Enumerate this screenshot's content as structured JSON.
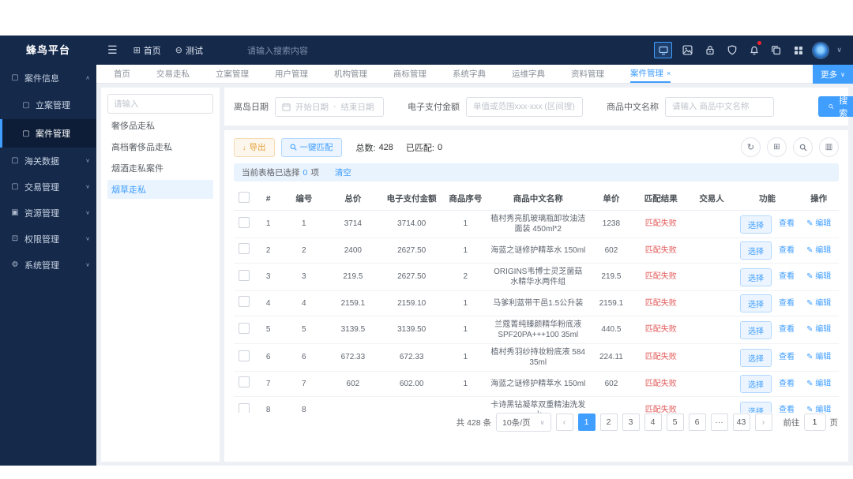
{
  "app": {
    "title": "蜂鸟平台"
  },
  "colors": {
    "accent": "#409EFF",
    "navy": "#15294B",
    "danger": "#E25B5B",
    "warning": "#E6A23C"
  },
  "topbar": {
    "nav": [
      {
        "label": "首页",
        "icon": "home-grid-icon"
      },
      {
        "label": "测试",
        "icon": "test-circle-icon"
      }
    ],
    "search_placeholder": "请输入搜索内容",
    "icon_names": [
      "screen-icon",
      "image-icon",
      "lock-icon",
      "shield-icon",
      "bell-icon",
      "copy-icon",
      "apps-grid-icon",
      "avatar",
      "chevron-down-icon"
    ]
  },
  "sidebar": {
    "items": [
      {
        "label": "案件信息",
        "icon": "monitor-icon",
        "expanded": true,
        "children": [
          {
            "label": "立案管理",
            "icon": "monitor-icon"
          },
          {
            "label": "案件管理",
            "icon": "monitor-icon",
            "active": true
          }
        ]
      },
      {
        "label": "海关数据",
        "icon": "monitor-icon"
      },
      {
        "label": "交易管理",
        "icon": "monitor-icon"
      },
      {
        "label": "资源管理",
        "icon": "folder-icon"
      },
      {
        "label": "权限管理",
        "icon": "lock-icon"
      },
      {
        "label": "系统管理",
        "icon": "gear-icon"
      }
    ]
  },
  "tabs": {
    "items": [
      "首页",
      "交易走私",
      "立案管理",
      "用户管理",
      "机构管理",
      "商标管理",
      "系统字典",
      "运维字典",
      "资料管理",
      "案件管理"
    ],
    "active": "案件管理",
    "more_label": "更多"
  },
  "left_panel": {
    "search_placeholder": "请输入",
    "items": [
      "奢侈品走私",
      "高档奢侈品走私",
      "烟酒走私案件",
      "烟草走私"
    ],
    "active": "烟草走私"
  },
  "filters": {
    "date_label": "离岛日期",
    "date_start_placeholder": "开始日期",
    "date_separator": "-",
    "date_end_placeholder": "结束日期",
    "amount_label": "电子支付金额",
    "amount_placeholder": "单值或范围xxx-xxx (区间搜)",
    "name_label": "商品中文名称",
    "name_placeholder": "请输入 商品中文名称",
    "search_button": "搜索"
  },
  "toolbar": {
    "export_button": "导出",
    "match_button": "一键匹配",
    "total_label": "总数:",
    "total_value": "428",
    "matched_label": "已匹配:",
    "matched_value": "0"
  },
  "selection_bar": {
    "prefix": "当前表格已选择",
    "count": "0",
    "suffix": "项",
    "clear_link": "清空"
  },
  "table": {
    "columns": [
      "#",
      "编号",
      "总价",
      "电子支付金额",
      "商品序号",
      "商品中文名称",
      "单价",
      "匹配结果",
      "交易人",
      "功能",
      "操作"
    ],
    "row_actions": {
      "select": "选择",
      "view": "查看",
      "edit": "编辑"
    },
    "rows": [
      {
        "num": "1",
        "code": "1",
        "total": "3714",
        "payment": "3714.00",
        "seq": "1",
        "name": "植村秀亮肌玻璃瓶卸妆油洁面装 450ml*2",
        "unit": "1238",
        "result": "匹配失败",
        "trader": ""
      },
      {
        "num": "2",
        "code": "2",
        "total": "2400",
        "payment": "2627.50",
        "seq": "1",
        "name": "海蓝之谜修护精萃水 150ml",
        "unit": "602",
        "result": "匹配失败",
        "trader": ""
      },
      {
        "num": "3",
        "code": "3",
        "total": "219.5",
        "payment": "2627.50",
        "seq": "2",
        "name": "ORIGINS韦博士灵芝菌菇水精华水两件组",
        "unit": "219.5",
        "result": "匹配失败",
        "trader": ""
      },
      {
        "num": "4",
        "code": "4",
        "total": "2159.1",
        "payment": "2159.10",
        "seq": "1",
        "name": "马爹利蓝带干邑1.5公升装",
        "unit": "2159.1",
        "result": "匹配失败",
        "trader": ""
      },
      {
        "num": "5",
        "code": "5",
        "total": "3139.5",
        "payment": "3139.50",
        "seq": "1",
        "name": "兰蔻菁纯臻颜精华粉底液SPF20PA+++100 35ml",
        "unit": "440.5",
        "result": "匹配失败",
        "trader": ""
      },
      {
        "num": "6",
        "code": "6",
        "total": "672.33",
        "payment": "672.33",
        "seq": "1",
        "name": "植村秀羽纱持妆粉底液 584 35ml",
        "unit": "224.11",
        "result": "匹配失败",
        "trader": ""
      },
      {
        "num": "7",
        "code": "7",
        "total": "602",
        "payment": "602.00",
        "seq": "1",
        "name": "海蓝之谜修护精萃水 150ml",
        "unit": "602",
        "result": "匹配失败",
        "trader": ""
      },
      {
        "num": "8",
        "code": "8",
        "total": "",
        "payment": "",
        "seq": "",
        "name": "卡诗黑钻凝萃双重精油洗发水",
        "unit": "",
        "result": "匹配失败",
        "trader": ""
      }
    ]
  },
  "pagination": {
    "total_text": "共 428 条",
    "page_size": "10条/页",
    "pages": [
      "1",
      "2",
      "3",
      "4",
      "5",
      "6",
      "...",
      "43"
    ],
    "active_page": "1",
    "goto_label": "前往",
    "goto_value": "1",
    "goto_suffix": "页"
  }
}
